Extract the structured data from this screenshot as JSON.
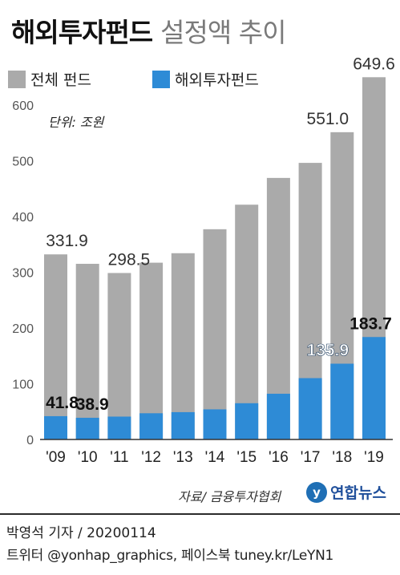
{
  "title": {
    "main": "해외투자펀드",
    "sub": "설정액 추이"
  },
  "chart_data": {
    "type": "bar",
    "unit_label": "단위: 조원",
    "categories": [
      "'09",
      "'10",
      "'11",
      "'12",
      "'13",
      "'14",
      "'15",
      "'16",
      "'17",
      "'18",
      "'19"
    ],
    "series": [
      {
        "name": "전체 펀드",
        "color": "#aaaaaa",
        "values": [
          331.9,
          315,
          298.5,
          317,
          334,
          377,
          421,
          469,
          496,
          551.0,
          649.6
        ]
      },
      {
        "name": "해외투자펀드",
        "color": "#2e8bd6",
        "values": [
          41.8,
          38.9,
          41,
          47,
          49,
          54,
          65,
          82,
          110,
          135.9,
          183.7
        ]
      }
    ],
    "data_labels": {
      "total": {
        "0": "331.9",
        "2": "298.5",
        "9": "551.0",
        "10": "649.6"
      },
      "overseas": {
        "0": "41.8",
        "1": "38.9",
        "9": "135.9",
        "10": "183.7"
      }
    },
    "ylim": [
      0,
      650
    ],
    "yticks": [
      0,
      100,
      200,
      300,
      400,
      500,
      600
    ],
    "legend_position": "top-left",
    "grid": false
  },
  "footer": {
    "source": "자료/ 금융투자협회",
    "logo_text": "연합뉴스",
    "credit": "박영석 기자 /  20200114",
    "social": "트위터 @yonhap_graphics, 페이스북 tuney.kr/LeYN1"
  }
}
